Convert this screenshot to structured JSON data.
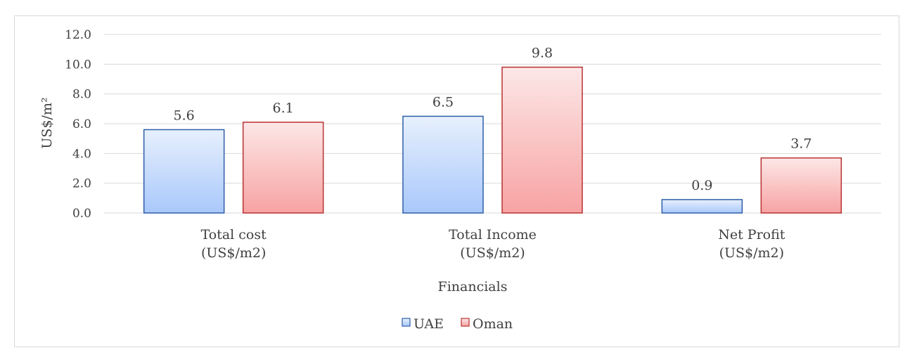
{
  "chart_data": {
    "type": "bar",
    "categories": [
      [
        "Total cost",
        "(US$/m2)"
      ],
      [
        "Total Income",
        "(US$/m2)"
      ],
      [
        "Net Profit",
        "(US$/m2)"
      ]
    ],
    "series": [
      {
        "name": "UAE",
        "values": [
          5.6,
          6.5,
          0.9
        ],
        "color_top": "#e7f0fd",
        "color_bottom": "#a9c8fb",
        "stroke": "#2e5fa8"
      },
      {
        "name": "Oman",
        "values": [
          6.1,
          9.8,
          3.7
        ],
        "color_top": "#fde7e7",
        "color_bottom": "#f7a3a3",
        "stroke": "#b83232"
      }
    ],
    "data_labels": [
      [
        "5.6",
        "6.5",
        "0.9"
      ],
      [
        "6.1",
        "9.8",
        "3.7"
      ]
    ],
    "xlabel": "Financials",
    "ylabel": "US$/m²",
    "ylim": [
      0,
      12
    ],
    "yticks": [
      "0.0",
      "2.0",
      "4.0",
      "6.0",
      "8.0",
      "10.0",
      "12.0"
    ],
    "grid": true,
    "legend_position": "bottom"
  }
}
